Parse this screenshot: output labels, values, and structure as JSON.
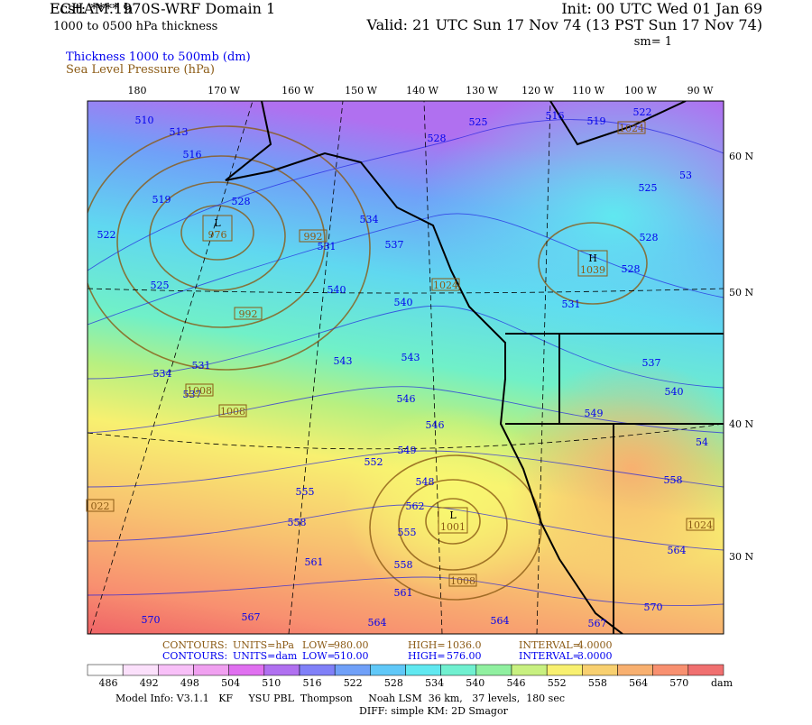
{
  "header": {
    "left": [
      "ECHAM.1970S-WRF Domain 1",
      "Fcst: **** h",
      "1000 to 0500 hPa thickness"
    ],
    "legend": [
      "Thickness 1000 to 500mb (dm)",
      "Sea Level Pressure (hPa)"
    ],
    "right": [
      "Init: 00 UTC Wed 01 Jan 69",
      "Valid: 21 UTC Sun 17 Nov 74 (13 PST Sun 17 Nov 74)",
      "sm= 1"
    ]
  },
  "map": {
    "lon_labels": [
      "180",
      "170 W",
      "160 W",
      "150 W",
      "140 W",
      "130 W",
      "120 W",
      "110 W",
      "100 W",
      "90 W"
    ],
    "lat_labels": [
      "60 N",
      "50 N",
      "40 N",
      "30 N"
    ],
    "thickness_labels": [
      510,
      513,
      516,
      519,
      522,
      525,
      528,
      534,
      531,
      537,
      540,
      540,
      543,
      543,
      546,
      546,
      549,
      552,
      555,
      558,
      561,
      548,
      562,
      555,
      558,
      561,
      564,
      564,
      567,
      570,
      567,
      534,
      531,
      537,
      525,
      528,
      516,
      519,
      522,
      53,
      525,
      528,
      528,
      531,
      537,
      540,
      549,
      54,
      558,
      564,
      570
    ],
    "pressure_labels": [
      "992",
      "1024",
      "992",
      "1008",
      "1008",
      "022",
      "1008",
      "1024",
      "1024"
    ],
    "pressure_centers": [
      {
        "type": "L",
        "value": 976
      },
      {
        "type": "H",
        "value": 1039
      },
      {
        "type": "L",
        "value": 1001
      }
    ]
  },
  "footer": {
    "slp_contours": [
      "CONTOURS:",
      "UNITS=hPa",
      "LOW=",
      "980.00",
      "HIGH=",
      "1036.0",
      "INTERVAL=",
      "4.0000"
    ],
    "thickness_contours": [
      "CONTOURS:",
      "UNITS=dam",
      "LOW=",
      "510.00",
      "HIGH=",
      "576.00",
      "INTERVAL=",
      "3.0000"
    ]
  },
  "colorbar": {
    "ticks": [
      486,
      492,
      498,
      504,
      510,
      516,
      522,
      528,
      534,
      540,
      546,
      552,
      558,
      564,
      570
    ],
    "unit": "dam"
  },
  "model_info": [
    "Model Info: V3.1.1   KF     YSU PBL  Thompson     Noah LSM  36 km,   37 levels,  180 sec",
    "DIFF: simple KM: 2D Smagor"
  ]
}
